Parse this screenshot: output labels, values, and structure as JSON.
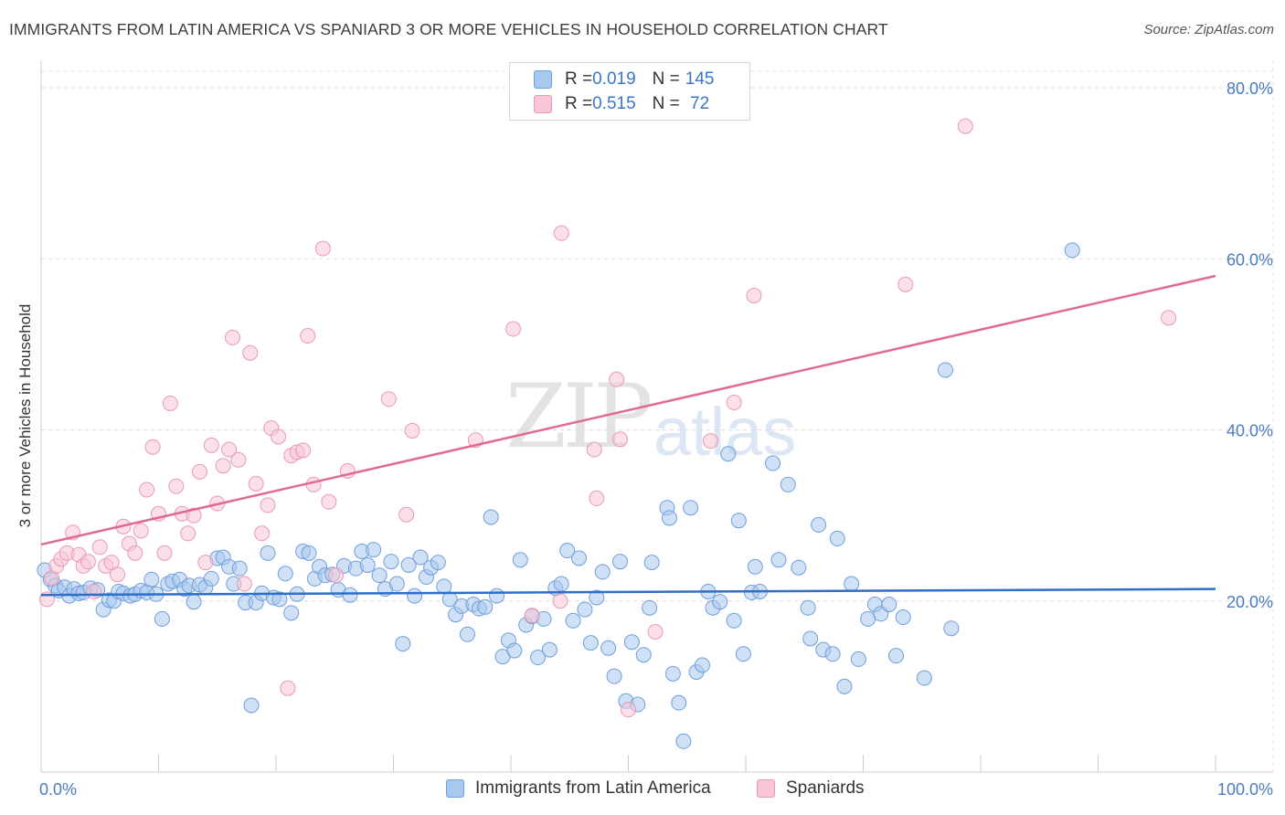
{
  "header": {
    "title": "IMMIGRANTS FROM LATIN AMERICA VS SPANIARD 3 OR MORE VEHICLES IN HOUSEHOLD CORRELATION CHART",
    "source": "Source: ZipAtlas.com"
  },
  "watermark": {
    "zip": "ZIP",
    "atlas": "atlas"
  },
  "legend": {
    "rows": [
      {
        "r_label": "R = ",
        "r_value": "0.019",
        "n_label": "N = ",
        "n_value": "145",
        "color": "#a9c8ee",
        "border": "#6f9fdc"
      },
      {
        "r_label": "R = ",
        "r_value": "0.515",
        "n_label": "N = ",
        "n_value": " 72",
        "color": "#f8c6d6",
        "border": "#e89ab3"
      }
    ]
  },
  "bottom_legend": [
    {
      "label": "Immigrants from Latin America",
      "color": "#a9c8ee",
      "border": "#6f9fdc"
    },
    {
      "label": "Spaniards",
      "color": "#f8c6d6",
      "border": "#e89ab3"
    }
  ],
  "chart_data": {
    "type": "scatter",
    "title": "IMMIGRANTS FROM LATIN AMERICA VS SPANIARD 3 OR MORE VEHICLES IN HOUSEHOLD CORRELATION CHART",
    "xlabel": "",
    "ylabel": "3 or more Vehicles in Household",
    "xlim": [
      0,
      100
    ],
    "ylim": [
      0,
      82
    ],
    "x_tick_labels": [
      "0.0%",
      "100.0%"
    ],
    "y_ticks": [
      20,
      40,
      60,
      80
    ],
    "y_tick_labels": [
      "20.0%",
      "40.0%",
      "60.0%",
      "80.0%"
    ],
    "series": [
      {
        "name": "Immigrants from Latin America",
        "color": "#a9c8ee",
        "stroke": "#6f9fdc",
        "trend": {
          "x": [
            0,
            100
          ],
          "y": [
            20.7,
            21.4
          ],
          "color": "#2f6fca"
        },
        "points": [
          [
            0.3,
            23.6
          ],
          [
            0.8,
            22.5
          ],
          [
            1.2,
            21.8
          ],
          [
            1.5,
            21.2
          ],
          [
            2.0,
            21.6
          ],
          [
            2.4,
            20.6
          ],
          [
            2.8,
            21.4
          ],
          [
            3.2,
            20.9
          ],
          [
            3.6,
            21.0
          ],
          [
            4.2,
            21.5
          ],
          [
            4.8,
            21.3
          ],
          [
            5.3,
            19.0
          ],
          [
            5.8,
            20.1
          ],
          [
            6.2,
            20.0
          ],
          [
            6.6,
            21.1
          ],
          [
            7.0,
            20.9
          ],
          [
            7.6,
            20.6
          ],
          [
            8.0,
            20.8
          ],
          [
            8.5,
            21.2
          ],
          [
            9.0,
            21.0
          ],
          [
            9.4,
            22.5
          ],
          [
            9.8,
            20.8
          ],
          [
            10.3,
            17.9
          ],
          [
            10.8,
            22.0
          ],
          [
            11.2,
            22.3
          ],
          [
            11.8,
            22.5
          ],
          [
            12.2,
            21.4
          ],
          [
            12.6,
            21.8
          ],
          [
            13.0,
            19.9
          ],
          [
            13.5,
            21.9
          ],
          [
            14.0,
            21.6
          ],
          [
            14.5,
            22.6
          ],
          [
            15.0,
            25.0
          ],
          [
            15.5,
            25.1
          ],
          [
            16.0,
            24.0
          ],
          [
            16.4,
            22.0
          ],
          [
            16.9,
            23.8
          ],
          [
            17.4,
            19.8
          ],
          [
            17.9,
            7.8
          ],
          [
            18.3,
            19.8
          ],
          [
            18.8,
            20.9
          ],
          [
            19.3,
            25.6
          ],
          [
            19.8,
            20.4
          ],
          [
            20.3,
            20.2
          ],
          [
            20.8,
            23.2
          ],
          [
            21.3,
            18.6
          ],
          [
            21.8,
            20.8
          ],
          [
            22.3,
            25.8
          ],
          [
            22.8,
            25.6
          ],
          [
            23.3,
            22.6
          ],
          [
            23.7,
            24.0
          ],
          [
            24.2,
            23.0
          ],
          [
            24.8,
            23.1
          ],
          [
            25.3,
            21.3
          ],
          [
            25.8,
            24.1
          ],
          [
            26.3,
            20.7
          ],
          [
            26.8,
            23.8
          ],
          [
            27.3,
            25.8
          ],
          [
            27.8,
            24.2
          ],
          [
            28.3,
            26.0
          ],
          [
            28.8,
            23.0
          ],
          [
            29.3,
            21.4
          ],
          [
            29.8,
            24.6
          ],
          [
            30.3,
            22.0
          ],
          [
            30.8,
            15.0
          ],
          [
            31.3,
            24.2
          ],
          [
            31.8,
            20.6
          ],
          [
            32.3,
            25.1
          ],
          [
            32.8,
            22.8
          ],
          [
            33.2,
            23.9
          ],
          [
            33.8,
            24.5
          ],
          [
            34.3,
            21.7
          ],
          [
            34.8,
            20.2
          ],
          [
            35.3,
            18.4
          ],
          [
            35.8,
            19.4
          ],
          [
            36.3,
            16.1
          ],
          [
            36.8,
            19.6
          ],
          [
            37.3,
            19.1
          ],
          [
            37.8,
            19.3
          ],
          [
            38.3,
            29.8
          ],
          [
            38.8,
            20.6
          ],
          [
            39.3,
            13.5
          ],
          [
            39.8,
            15.4
          ],
          [
            40.3,
            14.2
          ],
          [
            40.8,
            24.8
          ],
          [
            41.3,
            17.2
          ],
          [
            41.8,
            18.2
          ],
          [
            42.3,
            13.4
          ],
          [
            42.8,
            17.9
          ],
          [
            43.3,
            14.3
          ],
          [
            43.8,
            21.5
          ],
          [
            44.3,
            22.0
          ],
          [
            44.8,
            25.9
          ],
          [
            45.3,
            17.7
          ],
          [
            45.8,
            25.0
          ],
          [
            46.3,
            19.0
          ],
          [
            46.8,
            15.1
          ],
          [
            47.3,
            20.4
          ],
          [
            47.8,
            23.4
          ],
          [
            48.3,
            14.5
          ],
          [
            48.8,
            11.2
          ],
          [
            49.3,
            24.6
          ],
          [
            49.8,
            8.3
          ],
          [
            50.3,
            15.2
          ],
          [
            50.8,
            7.9
          ],
          [
            51.3,
            13.7
          ],
          [
            51.8,
            19.2
          ],
          [
            52.0,
            24.5
          ],
          [
            53.3,
            30.9
          ],
          [
            53.5,
            29.7
          ],
          [
            53.8,
            11.5
          ],
          [
            54.3,
            8.1
          ],
          [
            54.7,
            3.6
          ],
          [
            55.3,
            30.9
          ],
          [
            55.8,
            11.7
          ],
          [
            56.3,
            12.5
          ],
          [
            56.8,
            21.1
          ],
          [
            57.2,
            19.2
          ],
          [
            57.8,
            19.9
          ],
          [
            58.5,
            37.2
          ],
          [
            59.0,
            17.7
          ],
          [
            59.4,
            29.4
          ],
          [
            59.8,
            13.8
          ],
          [
            60.5,
            21.0
          ],
          [
            60.8,
            24.0
          ],
          [
            61.2,
            21.1
          ],
          [
            62.3,
            36.1
          ],
          [
            62.8,
            24.8
          ],
          [
            63.6,
            33.6
          ],
          [
            64.5,
            23.9
          ],
          [
            65.3,
            19.2
          ],
          [
            65.5,
            15.6
          ],
          [
            66.2,
            28.9
          ],
          [
            66.6,
            14.3
          ],
          [
            67.4,
            13.8
          ],
          [
            67.8,
            27.3
          ],
          [
            68.4,
            10.0
          ],
          [
            69.0,
            22.0
          ],
          [
            69.6,
            13.2
          ],
          [
            70.4,
            17.9
          ],
          [
            71.0,
            19.6
          ],
          [
            71.5,
            18.5
          ],
          [
            72.2,
            19.6
          ],
          [
            72.8,
            13.6
          ],
          [
            73.4,
            18.1
          ],
          [
            75.2,
            11.0
          ],
          [
            77.0,
            47.0
          ],
          [
            77.5,
            16.8
          ],
          [
            87.8,
            61.0
          ]
        ]
      },
      {
        "name": "Spaniards",
        "color": "#f8c6d6",
        "stroke": "#e89ab3",
        "trend": {
          "x": [
            0,
            100
          ],
          "y": [
            26.6,
            58.0
          ],
          "color": "#e06a93"
        },
        "points": [
          [
            0.5,
            20.2
          ],
          [
            0.9,
            22.7
          ],
          [
            1.3,
            24.1
          ],
          [
            1.7,
            24.9
          ],
          [
            2.2,
            25.6
          ],
          [
            2.7,
            28.0
          ],
          [
            3.2,
            25.4
          ],
          [
            3.6,
            24.1
          ],
          [
            4.0,
            24.6
          ],
          [
            4.5,
            21.1
          ],
          [
            5.0,
            26.3
          ],
          [
            5.5,
            24.1
          ],
          [
            6.0,
            24.5
          ],
          [
            6.5,
            23.1
          ],
          [
            7.0,
            28.7
          ],
          [
            7.5,
            26.7
          ],
          [
            8.0,
            25.6
          ],
          [
            8.5,
            28.2
          ],
          [
            9.0,
            33.0
          ],
          [
            9.5,
            38.0
          ],
          [
            10.0,
            30.2
          ],
          [
            10.5,
            25.6
          ],
          [
            11.0,
            43.1
          ],
          [
            11.5,
            33.4
          ],
          [
            12.0,
            30.2
          ],
          [
            12.5,
            27.9
          ],
          [
            13.0,
            30.0
          ],
          [
            13.5,
            35.1
          ],
          [
            14.0,
            24.5
          ],
          [
            14.5,
            38.2
          ],
          [
            15.0,
            31.4
          ],
          [
            15.5,
            35.8
          ],
          [
            16.0,
            37.7
          ],
          [
            16.3,
            50.8
          ],
          [
            16.8,
            36.5
          ],
          [
            17.3,
            22.0
          ],
          [
            17.8,
            49.0
          ],
          [
            18.3,
            33.7
          ],
          [
            18.8,
            27.9
          ],
          [
            19.3,
            31.2
          ],
          [
            19.6,
            40.2
          ],
          [
            20.2,
            39.2
          ],
          [
            21.0,
            9.8
          ],
          [
            21.3,
            37.0
          ],
          [
            21.8,
            37.4
          ],
          [
            22.3,
            37.6
          ],
          [
            22.7,
            51.0
          ],
          [
            23.2,
            33.6
          ],
          [
            24.0,
            61.2
          ],
          [
            24.5,
            31.6
          ],
          [
            25.1,
            23.0
          ],
          [
            26.1,
            35.2
          ],
          [
            29.6,
            43.6
          ],
          [
            31.6,
            39.9
          ],
          [
            31.1,
            30.1
          ],
          [
            37.0,
            38.8
          ],
          [
            40.2,
            51.8
          ],
          [
            41.8,
            18.3
          ],
          [
            44.2,
            20.0
          ],
          [
            44.3,
            63.0
          ],
          [
            47.1,
            37.7
          ],
          [
            47.3,
            32.0
          ],
          [
            49.0,
            45.9
          ],
          [
            49.3,
            38.9
          ],
          [
            50.0,
            7.3
          ],
          [
            52.3,
            16.4
          ],
          [
            57.0,
            38.7
          ],
          [
            59.0,
            43.2
          ],
          [
            60.7,
            55.7
          ],
          [
            73.6,
            57.0
          ],
          [
            78.7,
            75.5
          ],
          [
            96.0,
            53.1
          ]
        ]
      }
    ]
  }
}
